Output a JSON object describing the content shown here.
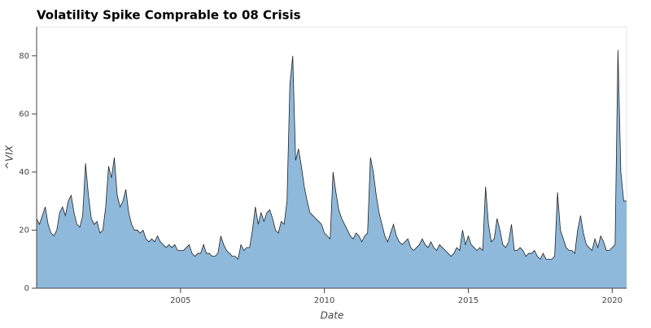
{
  "chart_data": {
    "type": "area",
    "title": "Volatility Spike Comprable to 08 Crisis",
    "xlabel": "Date",
    "ylabel": "^VIX",
    "x": [
      2000.0,
      2000.1,
      2000.2,
      2000.3,
      2000.4,
      2000.5,
      2000.6,
      2000.7,
      2000.8,
      2000.9,
      2001.0,
      2001.1,
      2001.2,
      2001.3,
      2001.4,
      2001.5,
      2001.6,
      2001.7,
      2001.8,
      2001.9,
      2002.0,
      2002.1,
      2002.2,
      2002.3,
      2002.4,
      2002.5,
      2002.6,
      2002.7,
      2002.8,
      2002.9,
      2003.0,
      2003.1,
      2003.2,
      2003.3,
      2003.4,
      2003.5,
      2003.6,
      2003.7,
      2003.8,
      2003.9,
      2004.0,
      2004.1,
      2004.2,
      2004.3,
      2004.4,
      2004.5,
      2004.6,
      2004.7,
      2004.8,
      2004.9,
      2005.0,
      2005.1,
      2005.2,
      2005.3,
      2005.4,
      2005.5,
      2005.6,
      2005.7,
      2005.8,
      2005.9,
      2006.0,
      2006.1,
      2006.2,
      2006.3,
      2006.4,
      2006.5,
      2006.6,
      2006.7,
      2006.8,
      2006.9,
      2007.0,
      2007.1,
      2007.2,
      2007.3,
      2007.4,
      2007.5,
      2007.6,
      2007.7,
      2007.8,
      2007.9,
      2008.0,
      2008.1,
      2008.2,
      2008.3,
      2008.4,
      2008.5,
      2008.6,
      2008.7,
      2008.8,
      2008.9,
      2009.0,
      2009.1,
      2009.2,
      2009.3,
      2009.4,
      2009.5,
      2009.6,
      2009.7,
      2009.8,
      2009.9,
      2010.0,
      2010.1,
      2010.2,
      2010.3,
      2010.4,
      2010.5,
      2010.6,
      2010.7,
      2010.8,
      2010.9,
      2011.0,
      2011.1,
      2011.2,
      2011.3,
      2011.4,
      2011.5,
      2011.6,
      2011.7,
      2011.8,
      2011.9,
      2012.0,
      2012.1,
      2012.2,
      2012.3,
      2012.4,
      2012.5,
      2012.6,
      2012.7,
      2012.8,
      2012.9,
      2013.0,
      2013.1,
      2013.2,
      2013.3,
      2013.4,
      2013.5,
      2013.6,
      2013.7,
      2013.8,
      2013.9,
      2014.0,
      2014.1,
      2014.2,
      2014.3,
      2014.4,
      2014.5,
      2014.6,
      2014.7,
      2014.8,
      2014.9,
      2015.0,
      2015.1,
      2015.2,
      2015.3,
      2015.4,
      2015.5,
      2015.6,
      2015.7,
      2015.8,
      2015.9,
      2016.0,
      2016.1,
      2016.2,
      2016.3,
      2016.4,
      2016.5,
      2016.6,
      2016.7,
      2016.8,
      2016.9,
      2017.0,
      2017.1,
      2017.2,
      2017.3,
      2017.4,
      2017.5,
      2017.6,
      2017.7,
      2017.8,
      2017.9,
      2018.0,
      2018.1,
      2018.2,
      2018.3,
      2018.4,
      2018.5,
      2018.6,
      2018.7,
      2018.8,
      2018.9,
      2019.0,
      2019.1,
      2019.2,
      2019.3,
      2019.4,
      2019.5,
      2019.6,
      2019.7,
      2019.8,
      2019.9,
      2020.0,
      2020.1,
      2020.2,
      2020.3,
      2020.4,
      2020.5
    ],
    "values": [
      24,
      22,
      25,
      28,
      22,
      19,
      18,
      20,
      26,
      28,
      25,
      30,
      32,
      26,
      22,
      21,
      25,
      43,
      32,
      24,
      22,
      23,
      19,
      20,
      28,
      42,
      38,
      45,
      32,
      28,
      30,
      34,
      26,
      22,
      20,
      20,
      19,
      20,
      17,
      16,
      17,
      16,
      18,
      16,
      15,
      14,
      15,
      14,
      15,
      13,
      13,
      13,
      14,
      15,
      12,
      11,
      12,
      12,
      15,
      12,
      12,
      11,
      11,
      12,
      18,
      15,
      13,
      12,
      11,
      11,
      10,
      15,
      13,
      14,
      14,
      20,
      28,
      22,
      26,
      23,
      26,
      27,
      24,
      20,
      19,
      23,
      22,
      30,
      70,
      80,
      44,
      48,
      42,
      35,
      30,
      26,
      25,
      24,
      23,
      22,
      19,
      18,
      17,
      40,
      33,
      27,
      24,
      22,
      20,
      18,
      17,
      19,
      18,
      16,
      18,
      19,
      45,
      40,
      32,
      26,
      22,
      18,
      16,
      19,
      22,
      18,
      16,
      15,
      16,
      17,
      14,
      13,
      14,
      15,
      17,
      15,
      14,
      16,
      14,
      13,
      15,
      14,
      13,
      12,
      11,
      12,
      14,
      13,
      20,
      15,
      18,
      15,
      14,
      13,
      14,
      13,
      35,
      22,
      16,
      17,
      24,
      20,
      15,
      14,
      16,
      22,
      13,
      13,
      14,
      13,
      11,
      12,
      12,
      13,
      11,
      10,
      12,
      10,
      10,
      10,
      11,
      33,
      20,
      17,
      14,
      13,
      13,
      12,
      20,
      25,
      19,
      15,
      14,
      13,
      17,
      14,
      18,
      16,
      13,
      13,
      14,
      15,
      82,
      40,
      30,
      30
    ],
    "color": "#8fb9db",
    "line_color": "#222222",
    "xlim": [
      2000,
      2020.5
    ],
    "ylim": [
      0,
      90
    ],
    "xticks": [
      2005,
      2010,
      2015,
      2020
    ],
    "yticks": [
      0,
      20,
      40,
      60,
      80
    ]
  }
}
